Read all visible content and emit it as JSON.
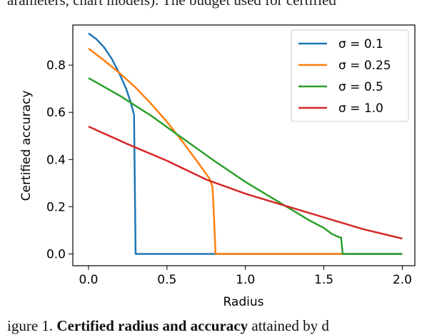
{
  "top_fragment": "arameters, chart models). The budget used for certified",
  "bottom_fragment": {
    "prefix": "igure 1. ",
    "bold": "Certified radius and accuracy",
    "suffix": " attained by d"
  },
  "chart_data": {
    "type": "line",
    "title": "",
    "xlabel": "Radius",
    "ylabel": "Certified accuracy",
    "xlim": [
      -0.1,
      2.08
    ],
    "ylim": [
      -0.05,
      0.97
    ],
    "xticks": [
      0.0,
      0.5,
      1.0,
      1.5,
      2.0
    ],
    "xtick_labels": [
      "0.0",
      "0.5",
      "1.0",
      "1.5",
      "2.0"
    ],
    "yticks": [
      0.0,
      0.2,
      0.4,
      0.6,
      0.8
    ],
    "ytick_labels": [
      "0.0",
      "0.2",
      "0.4",
      "0.6",
      "0.8"
    ],
    "grid": false,
    "legend_position": "top-right",
    "series": [
      {
        "name": "σ = 0.1",
        "color": "#1f77b4",
        "points": [
          [
            0.0,
            0.935
          ],
          [
            0.05,
            0.91
          ],
          [
            0.1,
            0.875
          ],
          [
            0.15,
            0.825
          ],
          [
            0.2,
            0.76
          ],
          [
            0.24,
            0.7
          ],
          [
            0.27,
            0.64
          ],
          [
            0.29,
            0.59
          ],
          [
            0.295,
            0.3
          ],
          [
            0.3,
            0.0
          ],
          [
            2.0,
            0.0
          ]
        ]
      },
      {
        "name": "σ = 0.25",
        "color": "#ff7f0e",
        "points": [
          [
            0.0,
            0.87
          ],
          [
            0.1,
            0.82
          ],
          [
            0.2,
            0.765
          ],
          [
            0.3,
            0.705
          ],
          [
            0.4,
            0.635
          ],
          [
            0.5,
            0.56
          ],
          [
            0.6,
            0.475
          ],
          [
            0.7,
            0.385
          ],
          [
            0.77,
            0.32
          ],
          [
            0.79,
            0.285
          ],
          [
            0.8,
            0.15
          ],
          [
            0.81,
            0.0
          ],
          [
            1.62,
            0.0
          ]
        ]
      },
      {
        "name": "σ = 0.5",
        "color": "#2ca02c",
        "points": [
          [
            0.0,
            0.745
          ],
          [
            0.2,
            0.67
          ],
          [
            0.4,
            0.585
          ],
          [
            0.6,
            0.49
          ],
          [
            0.8,
            0.395
          ],
          [
            1.0,
            0.305
          ],
          [
            1.2,
            0.225
          ],
          [
            1.4,
            0.145
          ],
          [
            1.5,
            0.11
          ],
          [
            1.55,
            0.085
          ],
          [
            1.6,
            0.07
          ],
          [
            1.61,
            0.07
          ],
          [
            1.62,
            0.0
          ],
          [
            2.0,
            0.0
          ]
        ]
      },
      {
        "name": "σ = 1.0",
        "color": "#d62728",
        "points": [
          [
            0.0,
            0.54
          ],
          [
            0.25,
            0.465
          ],
          [
            0.5,
            0.395
          ],
          [
            0.75,
            0.315
          ],
          [
            1.0,
            0.255
          ],
          [
            1.25,
            0.205
          ],
          [
            1.5,
            0.155
          ],
          [
            1.75,
            0.105
          ],
          [
            2.0,
            0.065
          ]
        ]
      }
    ]
  }
}
